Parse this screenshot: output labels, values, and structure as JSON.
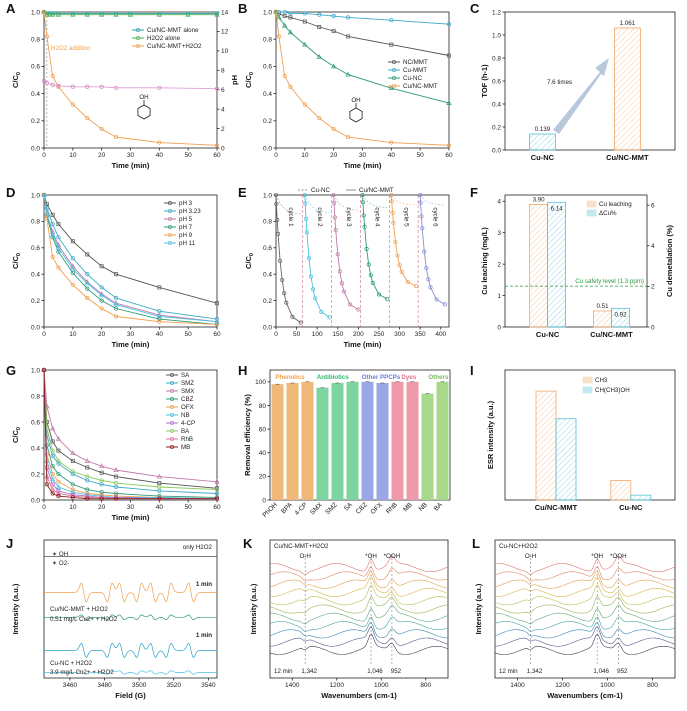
{
  "chart_data": [
    {
      "panel": "A",
      "type": "line",
      "xlabel": "Time (min)",
      "ylabel": "C/C0",
      "ylabel2": "pH",
      "xlim": [
        0,
        60
      ],
      "ylim": [
        0,
        1.0
      ],
      "y2lim": [
        0,
        14
      ],
      "xticks": [
        "0",
        "10",
        "20",
        "30",
        "40",
        "50",
        "60"
      ],
      "yticks": [
        "0.0",
        "0.2",
        "0.4",
        "0.6",
        "0.8",
        "1.0"
      ],
      "y2ticks": [
        "0",
        "2",
        "4",
        "6",
        "8",
        "10",
        "12",
        "14"
      ],
      "annotation": "H2O2 addition",
      "series": [
        {
          "name": "Cu/NC-MMT alone",
          "color": "#2ba3a8",
          "axis": "left",
          "x": [
            0,
            1,
            2,
            3,
            5,
            10,
            15,
            20,
            25,
            30,
            40,
            50,
            60
          ],
          "y": [
            1.0,
            0.99,
            0.99,
            0.99,
            0.99,
            0.99,
            0.99,
            0.99,
            0.99,
            0.99,
            0.99,
            0.99,
            0.99
          ]
        },
        {
          "name": "H2O2 alone",
          "color": "#4caf50",
          "axis": "left",
          "x": [
            0,
            1,
            2,
            3,
            5,
            10,
            15,
            20,
            25,
            30,
            40,
            50,
            60
          ],
          "y": [
            1.0,
            0.98,
            0.98,
            0.98,
            0.98,
            0.98,
            0.98,
            0.98,
            0.98,
            0.98,
            0.98,
            0.98,
            0.98
          ]
        },
        {
          "name": "Cu/NC-MMT+H2O2",
          "color": "#f0a050",
          "axis": "left",
          "x": [
            0,
            1,
            3,
            5,
            10,
            15,
            20,
            25,
            40,
            60
          ],
          "y": [
            1.0,
            0.82,
            0.53,
            0.45,
            0.32,
            0.22,
            0.14,
            0.08,
            0.04,
            0.02
          ]
        },
        {
          "name": "pH",
          "color": "#d884c8",
          "axis": "right",
          "legend": false,
          "x": [
            0,
            1,
            3,
            5,
            10,
            15,
            20,
            25,
            40,
            60
          ],
          "y": [
            6.9,
            6.7,
            6.5,
            6.4,
            6.3,
            6.3,
            6.3,
            6.2,
            6.2,
            6.1
          ]
        }
      ]
    },
    {
      "panel": "B",
      "type": "line",
      "xlabel": "Time (min)",
      "ylabel": "C/C0",
      "xlim": [
        0,
        60
      ],
      "ylim": [
        0,
        1.0
      ],
      "xticks": [
        "0",
        "10",
        "20",
        "30",
        "40",
        "50",
        "60"
      ],
      "yticks": [
        "0.0",
        "0.2",
        "0.4",
        "0.6",
        "0.8",
        "1.0"
      ],
      "series": [
        {
          "name": "NC/MMT",
          "color": "#555555",
          "x": [
            0,
            1,
            3,
            5,
            10,
            15,
            20,
            25,
            40,
            60
          ],
          "y": [
            1.0,
            0.99,
            0.97,
            0.96,
            0.93,
            0.89,
            0.86,
            0.82,
            0.76,
            0.68
          ]
        },
        {
          "name": "Cu-MMT",
          "color": "#3aa8c8",
          "x": [
            0,
            1,
            3,
            5,
            10,
            15,
            20,
            25,
            40,
            60
          ],
          "y": [
            1.0,
            1.0,
            1.0,
            0.99,
            0.99,
            0.98,
            0.97,
            0.96,
            0.94,
            0.91
          ]
        },
        {
          "name": "Cu-NC",
          "color": "#2e9a78",
          "x": [
            0,
            1,
            3,
            5,
            10,
            15,
            20,
            25,
            40,
            60
          ],
          "y": [
            1.0,
            0.96,
            0.9,
            0.85,
            0.76,
            0.67,
            0.6,
            0.54,
            0.44,
            0.33
          ]
        },
        {
          "name": "Cu/NC-MMT",
          "color": "#f0a050",
          "x": [
            0,
            1,
            3,
            5,
            10,
            15,
            20,
            25,
            40,
            60
          ],
          "y": [
            1.0,
            0.82,
            0.53,
            0.45,
            0.32,
            0.22,
            0.14,
            0.08,
            0.04,
            0.02
          ]
        }
      ]
    },
    {
      "panel": "C",
      "type": "bar",
      "ylabel": "TOF (h-1)",
      "ylim": [
        0,
        1.2
      ],
      "yticks": [
        "0.0",
        "0.2",
        "0.4",
        "0.6",
        "0.8",
        "1.0",
        "1.2"
      ],
      "categories": [
        "Cu-NC",
        "Cu/NC-MMT"
      ],
      "values": [
        0.139,
        1.061
      ],
      "value_labels": [
        "0.139",
        "1.061"
      ],
      "colors": [
        "#55c0d8",
        "#f0a86a"
      ],
      "annotation": "7.6 times"
    },
    {
      "panel": "D",
      "type": "line",
      "xlabel": "Time (min)",
      "ylabel": "C/C0",
      "xlim": [
        0,
        60
      ],
      "ylim": [
        0,
        1.0
      ],
      "xticks": [
        "0",
        "10",
        "20",
        "30",
        "40",
        "50",
        "60"
      ],
      "yticks": [
        "0.0",
        "0.2",
        "0.4",
        "0.6",
        "0.8",
        "1.0"
      ],
      "series": [
        {
          "name": "pH 3",
          "color": "#555555",
          "x": [
            0,
            1,
            3,
            5,
            10,
            15,
            20,
            25,
            40,
            60
          ],
          "y": [
            1.0,
            0.93,
            0.85,
            0.78,
            0.65,
            0.55,
            0.46,
            0.4,
            0.3,
            0.18
          ]
        },
        {
          "name": "pH 3.23",
          "color": "#3aa8c8",
          "x": [
            0,
            1,
            3,
            5,
            10,
            15,
            20,
            25,
            40,
            60
          ],
          "y": [
            1.0,
            0.9,
            0.78,
            0.68,
            0.52,
            0.4,
            0.3,
            0.22,
            0.12,
            0.06
          ]
        },
        {
          "name": "pH 5",
          "color": "#c07aa8",
          "x": [
            0,
            1,
            3,
            5,
            10,
            15,
            20,
            25,
            40,
            60
          ],
          "y": [
            1.0,
            0.86,
            0.72,
            0.62,
            0.46,
            0.34,
            0.25,
            0.18,
            0.09,
            0.04
          ]
        },
        {
          "name": "pH 7",
          "color": "#2e9a78",
          "x": [
            0,
            1,
            3,
            5,
            10,
            15,
            20,
            25,
            40,
            60
          ],
          "y": [
            1.0,
            0.84,
            0.68,
            0.57,
            0.41,
            0.29,
            0.2,
            0.14,
            0.06,
            0.02
          ]
        },
        {
          "name": "pH 9",
          "color": "#f0a050",
          "x": [
            0,
            1,
            3,
            5,
            10,
            15,
            20,
            25,
            40,
            60
          ],
          "y": [
            1.0,
            0.82,
            0.53,
            0.45,
            0.32,
            0.22,
            0.14,
            0.08,
            0.04,
            0.02
          ]
        },
        {
          "name": "pH 11",
          "color": "#4cc0e0",
          "x": [
            0,
            1,
            3,
            5,
            10,
            15,
            20,
            25,
            40,
            60
          ],
          "y": [
            1.0,
            0.86,
            0.7,
            0.6,
            0.44,
            0.33,
            0.24,
            0.17,
            0.08,
            0.04
          ]
        }
      ]
    },
    {
      "panel": "E",
      "type": "line",
      "xlabel": "Time (min)",
      "ylabel": "C/C0",
      "xlim": [
        0,
        420
      ],
      "ylim": [
        0,
        1.0
      ],
      "xticks": [
        "0",
        "50",
        "100",
        "150",
        "200",
        "250",
        "300",
        "350",
        "400"
      ],
      "yticks": [
        "0.0",
        "0.2",
        "0.4",
        "0.6",
        "0.8",
        "1.0"
      ],
      "legend": [
        "Cu-NC",
        "Cu/NC-MMT"
      ],
      "cycles": [
        "cycle 1",
        "cycle 2",
        "cycle 3",
        "cycle 4",
        "cycle 5",
        "cycle 6"
      ],
      "cycle_colors": [
        "#666666",
        "#4cc0e0",
        "#c07aa8",
        "#2e9a78",
        "#f0a050",
        "#8a8fd8"
      ],
      "cycle_starts": [
        0,
        70,
        140,
        210,
        280,
        350
      ],
      "cycle_length": 60,
      "cycnc_final": [
        0.02,
        0.06,
        0.12,
        0.2,
        0.3,
        0.16
      ],
      "cunc_final": [
        0.85,
        0.86,
        0.88,
        0.9,
        0.92,
        0.92
      ]
    },
    {
      "panel": "F",
      "type": "bar",
      "ylabel": "Cu leaching (mg/L)",
      "ylabel2": "Cu demetalation (%)",
      "ylim": [
        0,
        4.2
      ],
      "y2lim": [
        0,
        6.5
      ],
      "yticks": [
        "0",
        "1",
        "2",
        "3",
        "4"
      ],
      "y2ticks": [
        "0",
        "2",
        "4",
        "6"
      ],
      "categories": [
        "Cu-NC",
        "Cu/NC-MMT"
      ],
      "series": [
        {
          "name": "Cu leaching",
          "color": "#f0a86a",
          "values": [
            3.9,
            0.51
          ],
          "labels": [
            "3.90",
            "0.51"
          ]
        },
        {
          "name": "ΔCu%",
          "color": "#55c0d8",
          "values": [
            6.14,
            0.92
          ],
          "labels": [
            "6.14",
            "0.92"
          ]
        }
      ],
      "threshold": {
        "label": "Cu safety level (1.3 ppm)",
        "value": 1.3,
        "color": "#2e9a40"
      }
    },
    {
      "panel": "G",
      "type": "line",
      "xlabel": "Time (min)",
      "ylabel": "C/C0",
      "xlim": [
        0,
        60
      ],
      "ylim": [
        0,
        1.0
      ],
      "xticks": [
        "0",
        "10",
        "20",
        "30",
        "40",
        "50",
        "60"
      ],
      "yticks": [
        "0.0",
        "0.2",
        "0.4",
        "0.6",
        "0.8",
        "1.0"
      ],
      "series": [
        {
          "name": "SA",
          "color": "#555555",
          "x": [
            0,
            1,
            3,
            5,
            10,
            15,
            20,
            25,
            40,
            60
          ],
          "y": [
            1.0,
            0.6,
            0.45,
            0.38,
            0.3,
            0.25,
            0.21,
            0.18,
            0.13,
            0.09
          ]
        },
        {
          "name": "SMZ",
          "color": "#3aa8c8",
          "x": [
            0,
            1,
            3,
            5,
            10,
            15,
            20,
            25,
            40,
            60
          ],
          "y": [
            1.0,
            0.5,
            0.34,
            0.28,
            0.2,
            0.15,
            0.12,
            0.1,
            0.07,
            0.05
          ]
        },
        {
          "name": "SMX",
          "color": "#c07aa8",
          "x": [
            0,
            1,
            3,
            5,
            10,
            15,
            20,
            25,
            40,
            60
          ],
          "y": [
            1.0,
            0.72,
            0.55,
            0.47,
            0.36,
            0.3,
            0.26,
            0.23,
            0.18,
            0.14
          ]
        },
        {
          "name": "CBZ",
          "color": "#2e9a78",
          "x": [
            0,
            1,
            3,
            5,
            10,
            15,
            20,
            25,
            40,
            60
          ],
          "y": [
            1.0,
            0.42,
            0.26,
            0.2,
            0.12,
            0.08,
            0.06,
            0.05,
            0.03,
            0.02
          ]
        },
        {
          "name": "OFX",
          "color": "#f0a050",
          "x": [
            0,
            1,
            3,
            5,
            10,
            15,
            20,
            25,
            40,
            60
          ],
          "y": [
            1.0,
            0.35,
            0.2,
            0.14,
            0.08,
            0.05,
            0.04,
            0.03,
            0.02,
            0.01
          ]
        },
        {
          "name": "NB",
          "color": "#4cc0e0",
          "x": [
            0,
            1,
            3,
            5,
            10,
            15,
            20,
            25,
            40,
            60
          ],
          "y": [
            1.0,
            0.3,
            0.16,
            0.1,
            0.06,
            0.04,
            0.03,
            0.02,
            0.02,
            0.01
          ]
        },
        {
          "name": "4-CP",
          "color": "#b070c8",
          "x": [
            0,
            1,
            3,
            5,
            10,
            15,
            20,
            25,
            40,
            60
          ],
          "y": [
            1.0,
            0.25,
            0.12,
            0.07,
            0.04,
            0.03,
            0.02,
            0.02,
            0.01,
            0.01
          ]
        },
        {
          "name": "BA",
          "color": "#8bc860",
          "x": [
            0,
            1,
            3,
            5,
            10,
            15,
            20,
            25,
            40,
            60
          ],
          "y": [
            1.0,
            0.55,
            0.38,
            0.3,
            0.22,
            0.18,
            0.15,
            0.13,
            0.1,
            0.08
          ]
        },
        {
          "name": "RhB",
          "color": "#e0709a",
          "x": [
            0,
            1,
            3,
            5,
            10,
            15,
            20,
            25,
            40,
            60
          ],
          "y": [
            1.0,
            0.18,
            0.08,
            0.05,
            0.03,
            0.02,
            0.02,
            0.01,
            0.01,
            0.01
          ]
        },
        {
          "name": "MB",
          "color": "#8b1a1a",
          "x": [
            0,
            1,
            3,
            5,
            10,
            15,
            20,
            25,
            40,
            60
          ],
          "y": [
            1.0,
            0.12,
            0.05,
            0.03,
            0.02,
            0.01,
            0.01,
            0.01,
            0.01,
            0.01
          ]
        }
      ]
    },
    {
      "panel": "H",
      "type": "bar",
      "ylabel": "Removal efficiency (%)",
      "ylim": [
        0,
        110
      ],
      "yticks": [
        "0",
        "20",
        "40",
        "60",
        "80",
        "100"
      ],
      "categories": [
        "PhOH",
        "BPA",
        "4-CP",
        "SMX",
        "SMZ",
        "SA",
        "CBZ",
        "OFX",
        "RhB",
        "MB",
        "NB",
        "BA"
      ],
      "values": [
        98,
        99,
        100,
        95,
        99,
        100,
        100,
        99,
        100,
        100,
        90,
        100
      ],
      "colors": [
        "#f0b878",
        "#f0b878",
        "#f0b878",
        "#7dd4a0",
        "#7dd4a0",
        "#7dd4a0",
        "#9aa6e6",
        "#9aa6e6",
        "#ef9aa8",
        "#ef9aa8",
        "#a8d88a",
        "#a8d88a"
      ],
      "groups": [
        {
          "name": "Phenolics",
          "color": "#f0a050"
        },
        {
          "name": "Antibiotics",
          "color": "#2eb86a"
        },
        {
          "name": "Other PPCPs",
          "color": "#6a7ad8"
        },
        {
          "name": "Dyes",
          "color": "#e07088"
        },
        {
          "name": "Others",
          "color": "#7ab858"
        }
      ]
    },
    {
      "panel": "I",
      "type": "bar",
      "ylabel": "ESR intensity (a.u.)",
      "categories": [
        "Cu/NC-MMT",
        "Cu-NC"
      ],
      "series": [
        {
          "name": "CH3",
          "color": "#f0a86a",
          "values": [
            0.67,
            0.12
          ]
        },
        {
          "name": "CH(CH3)OH",
          "color": "#55c0d8",
          "values": [
            0.5,
            0.03
          ]
        }
      ],
      "ylim": [
        0,
        0.8
      ]
    },
    {
      "panel": "J",
      "type": "line",
      "xlabel": "Field (G)",
      "ylabel": "Intensity (a.u.)",
      "xticks": [
        "3460",
        "3480",
        "3500",
        "3520",
        "3540"
      ],
      "legend": [
        "OH",
        "O2-"
      ],
      "labels": [
        "only H2O2",
        "1 min",
        "Cu/NC-MMT + H2O2",
        "0.51 mg/L Cu2+ + H2O2",
        "1 min",
        "Cu-NC + H2O2",
        "3.9 mg/L Cu2+ + H2O2"
      ],
      "colors": [
        "#f0a050",
        "#e0709a",
        "#2e9a78",
        "#2ba3c8",
        "#555555",
        "#4cc0e0"
      ]
    },
    {
      "panel": "K",
      "type": "line",
      "title": "Cu/NC-MMT+H2O2",
      "xlabel": "Wavenumbers (cm-1)",
      "ylabel": "Intensity (a.u.)",
      "xticks": [
        "1400",
        "1200",
        "1000",
        "800"
      ],
      "peaks": [
        "O-H",
        "*OH",
        "*OOH"
      ],
      "peak_positions": [
        "1,342",
        "1,046",
        "952"
      ],
      "time_label": "12 min"
    },
    {
      "panel": "L",
      "type": "line",
      "title": "Cu-NC+H2O2",
      "xlabel": "Wavenumbers (cm-1)",
      "ylabel": "Intensity (a.u.)",
      "xticks": [
        "1400",
        "1200",
        "1000",
        "800"
      ],
      "peaks": [
        "O-H",
        "*OH",
        "*OOH"
      ],
      "peak_positions": [
        "1,342",
        "1,046",
        "952"
      ],
      "time_label": "12 min"
    }
  ]
}
